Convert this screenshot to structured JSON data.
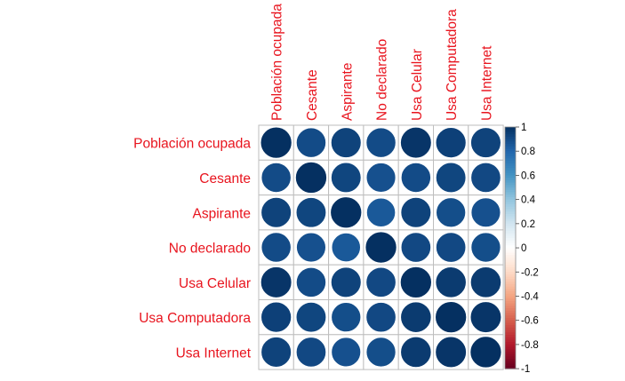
{
  "chart_data": {
    "type": "heatmap",
    "variables": [
      "Población ocupada",
      "Cesante",
      "Aspirante",
      "No declarado",
      "Usa Celular",
      "Usa Computadora",
      "Usa Internet"
    ],
    "matrix": [
      [
        1.0,
        0.9,
        0.93,
        0.9,
        0.98,
        0.94,
        0.93
      ],
      [
        0.9,
        1.0,
        0.92,
        0.88,
        0.9,
        0.92,
        0.91
      ],
      [
        0.93,
        0.92,
        1.0,
        0.85,
        0.93,
        0.89,
        0.88
      ],
      [
        0.9,
        0.88,
        0.85,
        1.0,
        0.91,
        0.91,
        0.89
      ],
      [
        0.98,
        0.9,
        0.93,
        0.91,
        1.0,
        0.96,
        0.96
      ],
      [
        0.94,
        0.92,
        0.89,
        0.91,
        0.96,
        1.0,
        0.98
      ],
      [
        0.93,
        0.91,
        0.88,
        0.89,
        0.96,
        0.98,
        1.0
      ]
    ],
    "color_scale": {
      "min": -1,
      "max": 1,
      "ticks": [
        "1",
        "0.8",
        "0.6",
        "0.4",
        "0.2",
        "0",
        "-0.2",
        "-0.4",
        "-0.6",
        "-0.8",
        "-1"
      ],
      "colors": [
        "#67001F",
        "#B2182B",
        "#D6604D",
        "#F4A582",
        "#FDDBC7",
        "#FFFFFF",
        "#D1E5F0",
        "#92C5DE",
        "#4393C3",
        "#2166AC",
        "#053061"
      ]
    },
    "label_color": "#E8141E",
    "grid_color": "#BEBEBE",
    "legend_position": "right"
  }
}
